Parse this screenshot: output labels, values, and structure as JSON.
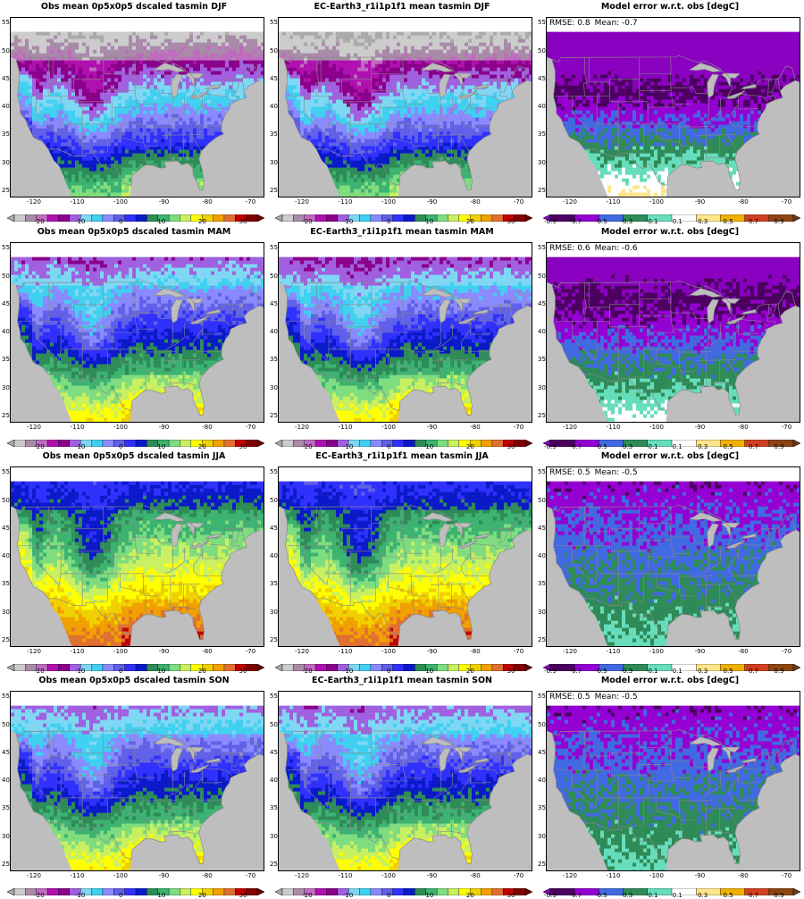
{
  "rows": [
    {
      "season": "DJF",
      "obs_title": "Obs mean 0p5x0p5 dscaled tasmin DJF",
      "model_title": "EC-Earth3_r1i1p1f1 mean tasmin DJF",
      "error_title": "Model error w.r.t. obs [degC]",
      "rmse_label": "RMSE: 0.8",
      "mean_label": "Mean: -0.7"
    },
    {
      "season": "MAM",
      "obs_title": "Obs mean 0p5x0p5 dscaled tasmin MAM",
      "model_title": "EC-Earth3_r1i1p1f1 mean tasmin MAM",
      "error_title": "Model error w.r.t. obs [degC]",
      "rmse_label": "RMSE: 0.6",
      "mean_label": "Mean: -0.6"
    },
    {
      "season": "JJA",
      "obs_title": "Obs mean 0p5x0p5 dscaled tasmin JJA",
      "model_title": "EC-Earth3_r1i1p1f1 mean tasmin JJA",
      "error_title": "Model error w.r.t. obs [degC]",
      "rmse_label": "RMSE: 0.5",
      "mean_label": "Mean: -0.5"
    },
    {
      "season": "SON",
      "obs_title": "Obs mean 0p5x0p5 dscaled tasmin SON",
      "model_title": "EC-Earth3_r1i1p1f1 mean tasmin SON",
      "error_title": "Model error w.r.t. obs [degC]",
      "rmse_label": "RMSE: 0.5",
      "mean_label": "Mean: -0.5"
    }
  ],
  "axes": {
    "lat_ticks": [
      "25",
      "30",
      "35",
      "40",
      "45",
      "50",
      "55"
    ],
    "lon_ticks": [
      "-120",
      "-110",
      "-100",
      "-90",
      "-80",
      "-70"
    ]
  },
  "temp_colorbar": {
    "labels": [
      "-20",
      "-10",
      "0",
      "10",
      "20",
      "30"
    ],
    "colors": [
      "#cccccc",
      "#a98aa9",
      "#c06ac0",
      "#b010b0",
      "#8a008a",
      "#a060e0",
      "#7fd7f4",
      "#40d0f0",
      "#8a8aff",
      "#6060e8",
      "#3030ff",
      "#0a1ac8",
      "#2e8b57",
      "#3cb371",
      "#7fdc7f",
      "#c8f060",
      "#ffff00",
      "#f0d000",
      "#f0a000",
      "#e07030",
      "#c00000",
      "#800000"
    ],
    "min_arrow": "#aaaaaa",
    "max_arrow": "#6a0000"
  },
  "error_colorbar": {
    "labels": [
      "-0.9",
      "-0.7",
      "-0.5",
      "-0.3",
      "-0.1",
      "0.1",
      "0.3",
      "0.5",
      "0.7",
      "0.9"
    ],
    "colors": [
      "#4b0060",
      "#9400d3",
      "#4169e1",
      "#2e8b57",
      "#66ddbb",
      "#ffffff",
      "#ffe58a",
      "#f0b000",
      "#d04020",
      "#8b4513"
    ],
    "min_arrow": "#8a00c0",
    "max_arrow": "#6b3a1e"
  },
  "colors": {
    "ocean": "#bebebe",
    "border": "#888888"
  }
}
